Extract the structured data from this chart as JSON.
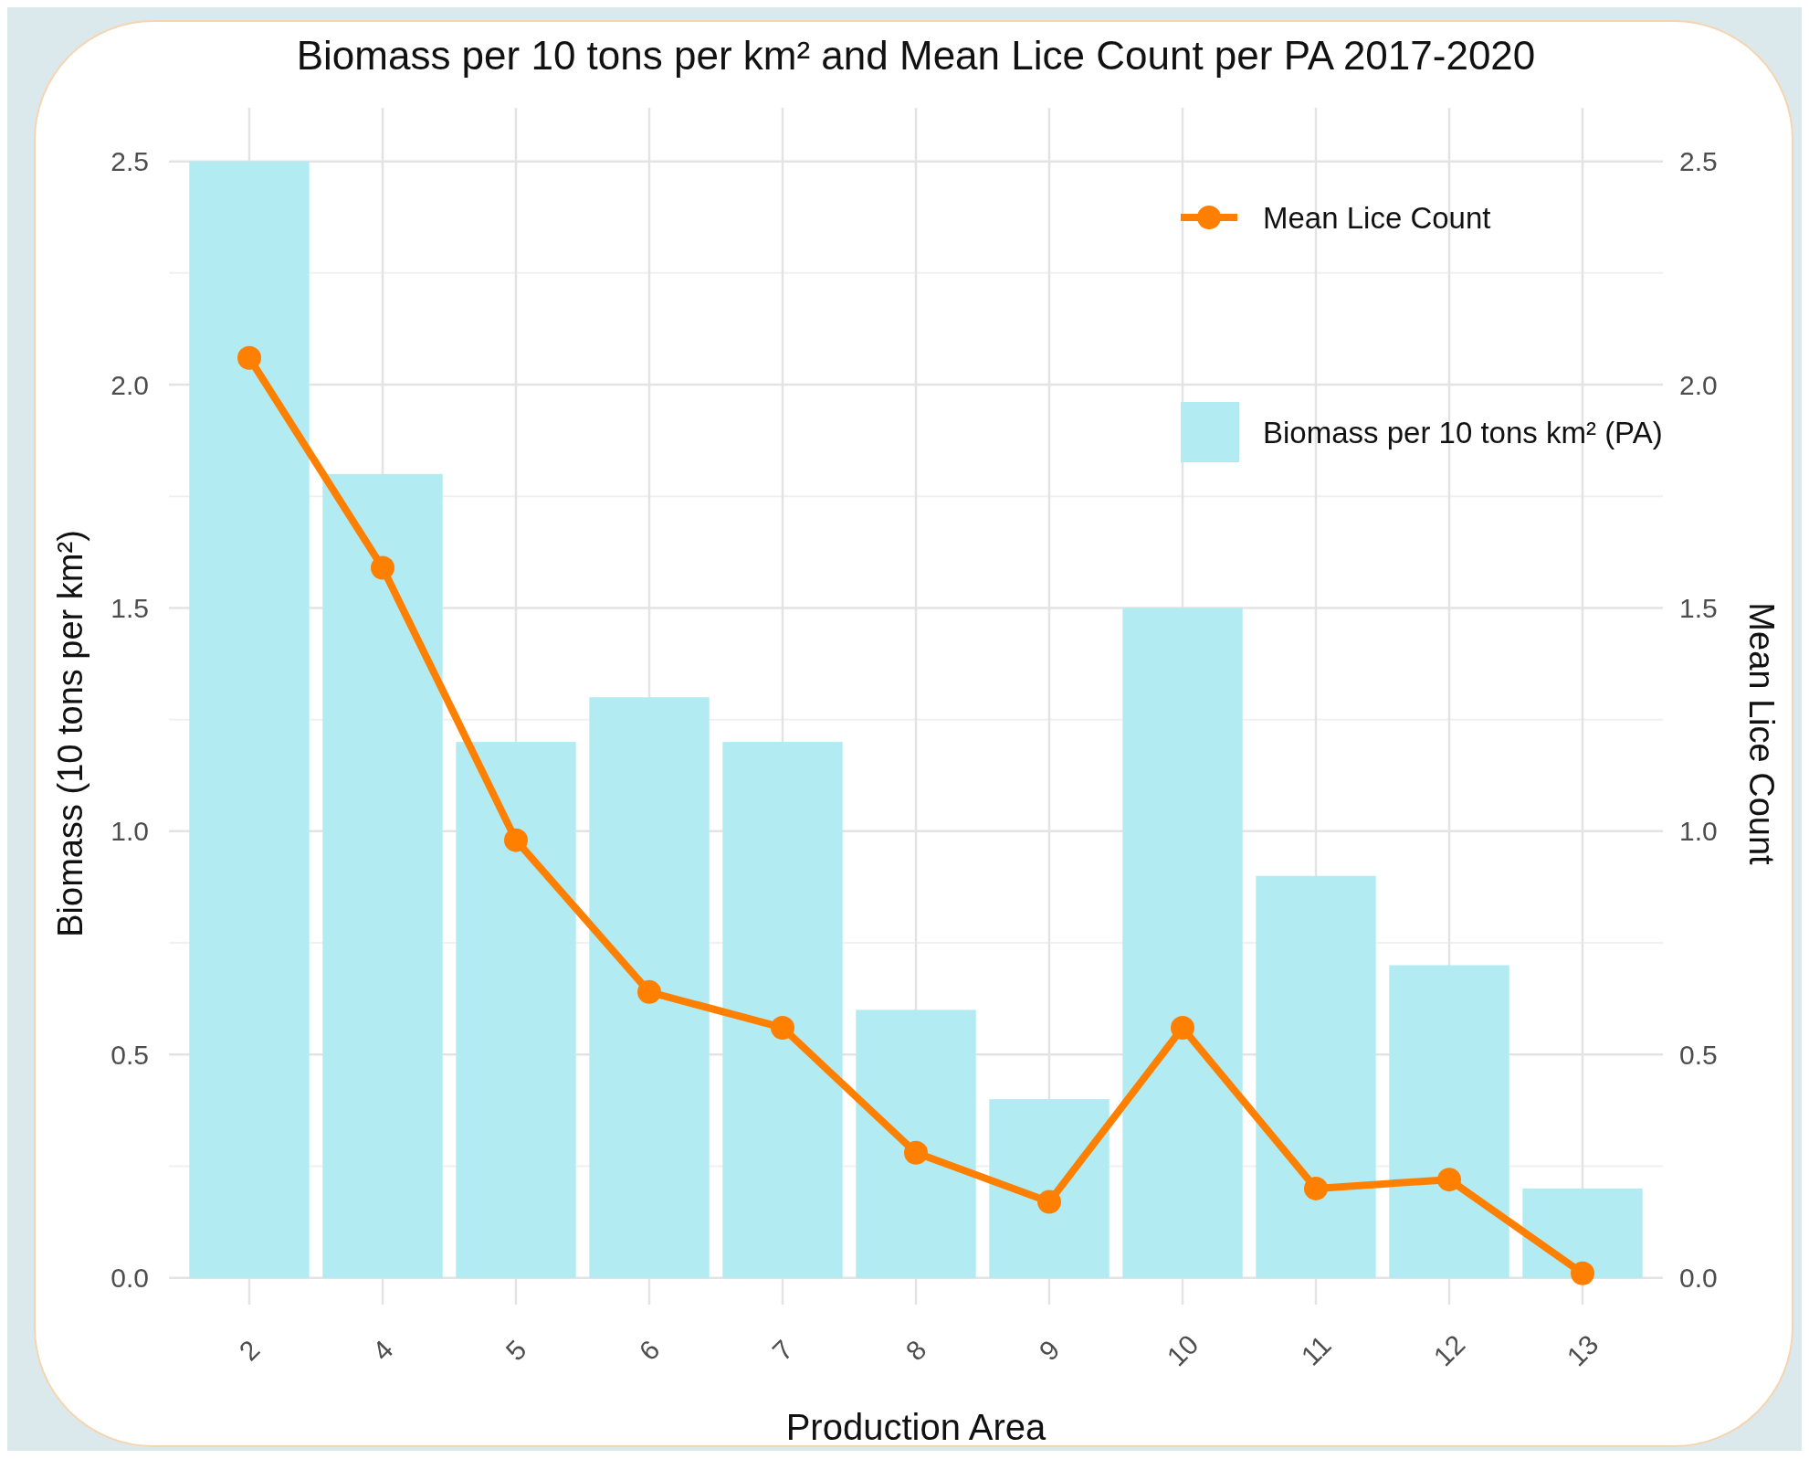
{
  "chart_data": {
    "type": "bar",
    "title": "Biomass per 10 tons per km² and Mean Lice Count per PA 2017-2020",
    "xlabel": "Production Area",
    "ylabel": "Biomass (10 tons per km²)",
    "y2label": "Mean Lice Count",
    "categories": [
      "2",
      "4",
      "5",
      "6",
      "7",
      "8",
      "9",
      "10",
      "11",
      "12",
      "13"
    ],
    "series": [
      {
        "name": "Biomass per 10 tons km² (PA)",
        "color": "#b2ebf2",
        "values": [
          2.5,
          1.8,
          1.2,
          1.3,
          1.2,
          0.6,
          0.4,
          1.5,
          0.9,
          0.7,
          0.2
        ]
      },
      {
        "name": "Mean Lice Count",
        "type": "line",
        "axis": "y2",
        "color": "#ff7f00",
        "values": [
          2.06,
          1.59,
          0.98,
          0.64,
          0.56,
          0.28,
          0.17,
          0.56,
          0.2,
          0.22,
          0.01
        ]
      }
    ],
    "ylim": [
      -0.06,
      2.62
    ],
    "yticks": [
      {
        "value": 0,
        "label": "0.0"
      },
      0.5,
      {
        "value": 1,
        "label": "1.0"
      },
      1.5,
      {
        "value": 2,
        "label": "2.0"
      },
      2.5
    ],
    "y2lim": [
      -0.06,
      2.62
    ],
    "y2ticks": [
      {
        "value": 0,
        "label": "0.0"
      },
      0.5,
      {
        "value": 1,
        "label": "1.0"
      },
      1.5,
      {
        "value": 2,
        "label": "2.0"
      },
      2.5
    ],
    "grid": true,
    "legend": "top right",
    "marker": "circle",
    "line_style": "solid"
  }
}
